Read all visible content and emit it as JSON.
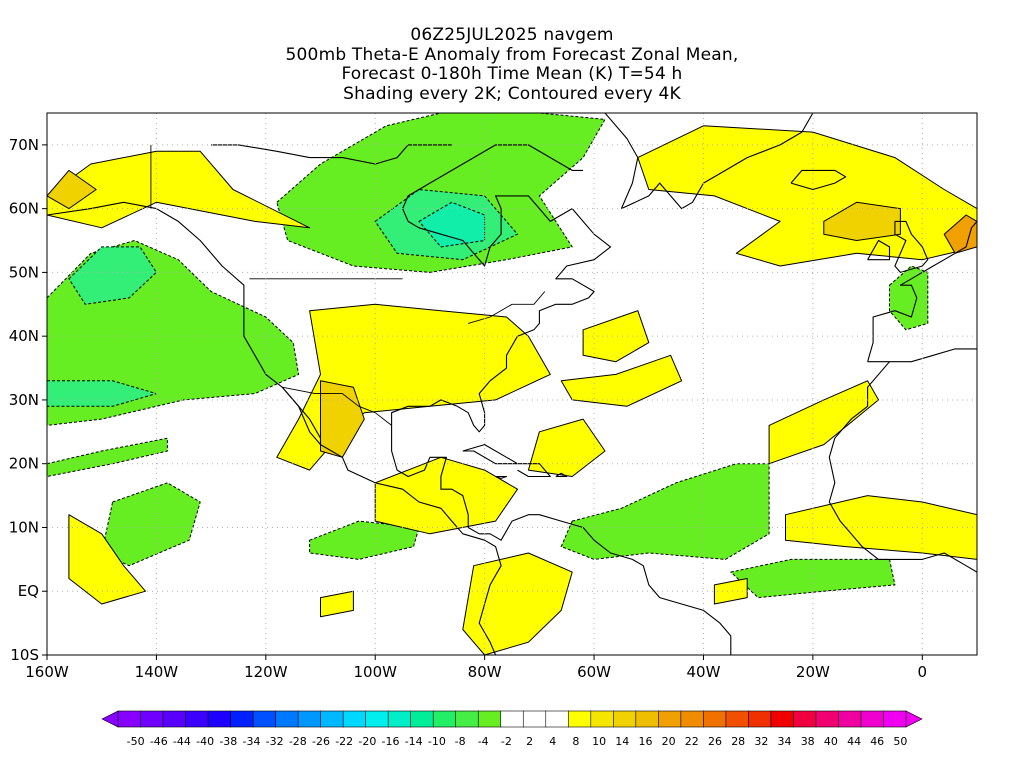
{
  "title": {
    "line1": "06Z25JUL2025 navgem",
    "line2": "500mb Theta-E Anomaly from Forecast Zonal Mean,",
    "line3": "Forecast 0-180h Time Mean (K) T=54 h",
    "line4": "Shading every 2K; Contoured every 4K"
  },
  "map": {
    "projection": "cylindrical",
    "lon_range": [
      -160,
      10
    ],
    "lat_range": [
      -10,
      75
    ],
    "lon_ticks": [
      {
        "value": -160,
        "label": "160W"
      },
      {
        "value": -140,
        "label": "140W"
      },
      {
        "value": -120,
        "label": "120W"
      },
      {
        "value": -100,
        "label": "100W"
      },
      {
        "value": -80,
        "label": "80W"
      },
      {
        "value": -60,
        "label": "60W"
      },
      {
        "value": -40,
        "label": "40W"
      },
      {
        "value": -20,
        "label": "20W"
      },
      {
        "value": 0,
        "label": "0"
      }
    ],
    "lat_ticks": [
      {
        "value": 70,
        "label": "70N"
      },
      {
        "value": 60,
        "label": "60N"
      },
      {
        "value": 50,
        "label": "50N"
      },
      {
        "value": 40,
        "label": "40N"
      },
      {
        "value": 30,
        "label": "30N"
      },
      {
        "value": 20,
        "label": "20N"
      },
      {
        "value": 10,
        "label": "10N"
      },
      {
        "value": 0,
        "label": "EQ"
      },
      {
        "value": -10,
        "label": "10S"
      }
    ],
    "grid": "dotted",
    "colors": {
      "land_outline": "#000000",
      "grid": "#b0b0b0",
      "pos_weak": "#ffff00",
      "pos_mid": "#f0d200",
      "pos_strong": "#f0a000",
      "neg_weak": "#66ee22",
      "neg_mid": "#33ee77",
      "neg_strong": "#11eeaa"
    },
    "anomaly_regions": [
      {
        "sign": "neg",
        "level": 1,
        "points": [
          [
            -160,
            46
          ],
          [
            -152,
            53
          ],
          [
            -144,
            55
          ],
          [
            -136,
            52
          ],
          [
            -130,
            47
          ],
          [
            -120,
            43
          ],
          [
            -115,
            39
          ],
          [
            -114,
            34
          ],
          [
            -122,
            31
          ],
          [
            -135,
            30
          ],
          [
            -150,
            27
          ],
          [
            -160,
            26
          ]
        ]
      },
      {
        "sign": "neg",
        "level": 2,
        "points": [
          [
            -156,
            49
          ],
          [
            -150,
            54
          ],
          [
            -143,
            54
          ],
          [
            -140,
            50
          ],
          [
            -145,
            46
          ],
          [
            -153,
            45
          ]
        ]
      },
      {
        "sign": "neg",
        "level": 2,
        "points": [
          [
            -160,
            33
          ],
          [
            -148,
            33
          ],
          [
            -140,
            31
          ],
          [
            -148,
            29
          ],
          [
            -160,
            29
          ]
        ]
      },
      {
        "sign": "neg",
        "level": 1,
        "points": [
          [
            -118,
            61
          ],
          [
            -110,
            67
          ],
          [
            -98,
            73
          ],
          [
            -88,
            75
          ],
          [
            -70,
            75
          ],
          [
            -58,
            74
          ],
          [
            -62,
            68
          ],
          [
            -70,
            62
          ],
          [
            -64,
            54
          ],
          [
            -76,
            52
          ],
          [
            -90,
            50
          ],
          [
            -104,
            51
          ],
          [
            -116,
            55
          ]
        ]
      },
      {
        "sign": "neg",
        "level": 2,
        "points": [
          [
            -100,
            58
          ],
          [
            -92,
            63
          ],
          [
            -80,
            62
          ],
          [
            -74,
            56
          ],
          [
            -84,
            52
          ],
          [
            -96,
            53
          ]
        ]
      },
      {
        "sign": "neg",
        "level": 3,
        "points": [
          [
            -92,
            58
          ],
          [
            -86,
            61
          ],
          [
            -80,
            59
          ],
          [
            -80,
            55
          ],
          [
            -88,
            54
          ]
        ]
      },
      {
        "sign": "neg",
        "level": 1,
        "points": [
          [
            -64,
            11
          ],
          [
            -55,
            13
          ],
          [
            -45,
            17
          ],
          [
            -34,
            20
          ],
          [
            -28,
            20
          ],
          [
            -28,
            9
          ],
          [
            -36,
            5
          ],
          [
            -50,
            6
          ],
          [
            -60,
            5
          ],
          [
            -66,
            7
          ]
        ]
      },
      {
        "sign": "neg",
        "level": 1,
        "points": [
          [
            -148,
            14
          ],
          [
            -138,
            17
          ],
          [
            -132,
            14
          ],
          [
            -134,
            8
          ],
          [
            -145,
            4
          ],
          [
            -150,
            6
          ]
        ]
      },
      {
        "sign": "neg",
        "level": 1,
        "points": [
          [
            -112,
            8
          ],
          [
            -103,
            11
          ],
          [
            -92,
            10
          ],
          [
            -93,
            7
          ],
          [
            -103,
            5
          ],
          [
            -112,
            6
          ]
        ]
      },
      {
        "sign": "neg",
        "level": 1,
        "points": [
          [
            -35,
            3
          ],
          [
            -24,
            5
          ],
          [
            -6,
            5
          ],
          [
            -5,
            1
          ],
          [
            -18,
            0
          ],
          [
            -30,
            -1
          ]
        ]
      },
      {
        "sign": "neg",
        "level": 1,
        "points": [
          [
            -160,
            20
          ],
          [
            -150,
            22
          ],
          [
            -138,
            24
          ],
          [
            -138,
            22
          ],
          [
            -148,
            20
          ],
          [
            -160,
            18
          ]
        ]
      },
      {
        "sign": "neg",
        "level": 1,
        "points": [
          [
            -6,
            48
          ],
          [
            -2,
            51
          ],
          [
            1,
            50
          ],
          [
            1,
            42
          ],
          [
            -3,
            41
          ],
          [
            -6,
            44
          ]
        ]
      },
      {
        "sign": "pos",
        "level": 1,
        "points": [
          [
            -160,
            62
          ],
          [
            -152,
            67
          ],
          [
            -140,
            69
          ],
          [
            -132,
            69
          ],
          [
            -126,
            63
          ],
          [
            -112,
            57
          ],
          [
            -122,
            58
          ],
          [
            -140,
            61
          ],
          [
            -150,
            57
          ],
          [
            -160,
            59
          ]
        ]
      },
      {
        "sign": "pos",
        "level": 2,
        "points": [
          [
            -160,
            62
          ],
          [
            -156,
            66
          ],
          [
            -151,
            63
          ],
          [
            -156,
            60
          ]
        ]
      },
      {
        "sign": "pos",
        "level": 1,
        "points": [
          [
            -52,
            68
          ],
          [
            -40,
            73
          ],
          [
            -20,
            72
          ],
          [
            -5,
            68
          ],
          [
            4,
            63
          ],
          [
            10,
            60
          ],
          [
            10,
            54
          ],
          [
            0,
            52
          ],
          [
            -12,
            53
          ],
          [
            -26,
            51
          ],
          [
            -34,
            53
          ],
          [
            -26,
            58
          ],
          [
            -38,
            62
          ],
          [
            -50,
            63
          ]
        ]
      },
      {
        "sign": "pos",
        "level": 2,
        "points": [
          [
            -18,
            58
          ],
          [
            -12,
            61
          ],
          [
            -4,
            60
          ],
          [
            -4,
            56
          ],
          [
            -12,
            55
          ],
          [
            -18,
            56
          ]
        ]
      },
      {
        "sign": "pos",
        "level": 3,
        "points": [
          [
            4,
            56
          ],
          [
            8,
            59
          ],
          [
            10,
            58
          ],
          [
            10,
            54
          ],
          [
            6,
            53
          ]
        ]
      },
      {
        "sign": "pos",
        "level": 1,
        "points": [
          [
            -112,
            44
          ],
          [
            -100,
            45
          ],
          [
            -88,
            44
          ],
          [
            -76,
            43
          ],
          [
            -72,
            40
          ],
          [
            -68,
            34
          ],
          [
            -78,
            30
          ],
          [
            -90,
            29
          ],
          [
            -102,
            28
          ],
          [
            -108,
            23
          ],
          [
            -112,
            19
          ],
          [
            -118,
            21
          ],
          [
            -114,
            27
          ],
          [
            -110,
            34
          ]
        ]
      },
      {
        "sign": "pos",
        "level": 2,
        "points": [
          [
            -110,
            33
          ],
          [
            -104,
            32
          ],
          [
            -102,
            27
          ],
          [
            -106,
            21
          ],
          [
            -110,
            22
          ],
          [
            -110,
            28
          ]
        ]
      },
      {
        "sign": "pos",
        "level": 1,
        "points": [
          [
            -62,
            41
          ],
          [
            -52,
            44
          ],
          [
            -50,
            39
          ],
          [
            -56,
            36
          ],
          [
            -62,
            37
          ]
        ]
      },
      {
        "sign": "pos",
        "level": 1,
        "points": [
          [
            -66,
            33
          ],
          [
            -56,
            34
          ],
          [
            -46,
            37
          ],
          [
            -44,
            33
          ],
          [
            -54,
            29
          ],
          [
            -64,
            30
          ]
        ]
      },
      {
        "sign": "pos",
        "level": 1,
        "points": [
          [
            -100,
            17
          ],
          [
            -88,
            21
          ],
          [
            -80,
            19
          ],
          [
            -74,
            16
          ],
          [
            -78,
            11
          ],
          [
            -90,
            9
          ],
          [
            -100,
            11
          ]
        ]
      },
      {
        "sign": "pos",
        "level": 1,
        "points": [
          [
            -70,
            25
          ],
          [
            -62,
            27
          ],
          [
            -58,
            22
          ],
          [
            -64,
            18
          ],
          [
            -72,
            19
          ]
        ]
      },
      {
        "sign": "pos",
        "level": 1,
        "points": [
          [
            -28,
            26
          ],
          [
            -18,
            30
          ],
          [
            -10,
            33
          ],
          [
            -8,
            30
          ],
          [
            -18,
            23
          ],
          [
            -28,
            20
          ]
        ]
      },
      {
        "sign": "pos",
        "level": 1,
        "points": [
          [
            -25,
            12
          ],
          [
            -10,
            15
          ],
          [
            0,
            14
          ],
          [
            10,
            12
          ],
          [
            10,
            5
          ],
          [
            0,
            6
          ],
          [
            -14,
            7
          ],
          [
            -25,
            8
          ]
        ]
      },
      {
        "sign": "pos",
        "level": 1,
        "points": [
          [
            -156,
            12
          ],
          [
            -150,
            9
          ],
          [
            -146,
            4
          ],
          [
            -142,
            0
          ],
          [
            -150,
            -2
          ],
          [
            -156,
            2
          ]
        ]
      },
      {
        "sign": "pos",
        "level": 1,
        "points": [
          [
            -82,
            4
          ],
          [
            -72,
            6
          ],
          [
            -64,
            3
          ],
          [
            -66,
            -3
          ],
          [
            -72,
            -8
          ],
          [
            -80,
            -10
          ],
          [
            -84,
            -6
          ]
        ]
      },
      {
        "sign": "pos",
        "level": 1,
        "points": [
          [
            -110,
            -1
          ],
          [
            -104,
            0
          ],
          [
            -104,
            -3
          ],
          [
            -110,
            -4
          ]
        ]
      },
      {
        "sign": "pos",
        "level": 1,
        "points": [
          [
            -38,
            1
          ],
          [
            -32,
            2
          ],
          [
            -32,
            -1
          ],
          [
            -38,
            -2
          ]
        ]
      }
    ]
  },
  "colorbar": {
    "labels": [
      "-50",
      "-46",
      "-44",
      "-40",
      "-38",
      "-34",
      "-32",
      "-28",
      "-26",
      "-22",
      "-20",
      "-16",
      "-14",
      "-10",
      "-8",
      "-4",
      "-2",
      "2",
      "4",
      "8",
      "10",
      "14",
      "16",
      "20",
      "22",
      "26",
      "28",
      "32",
      "34",
      "38",
      "40",
      "44",
      "46",
      "50"
    ],
    "colors": [
      "#8800ff",
      "#7000ff",
      "#5a00ff",
      "#3c00ff",
      "#1e00ff",
      "#0020ff",
      "#0050ff",
      "#0078ff",
      "#0098ff",
      "#00b8ff",
      "#00d8ff",
      "#00eeee",
      "#00eec8",
      "#00ee99",
      "#22ee66",
      "#44ee44",
      "#66ee22",
      "#ffffff",
      "#ffffff",
      "#ffffff",
      "#ffff00",
      "#f5e600",
      "#f0d200",
      "#f0be00",
      "#f0a000",
      "#f08c00",
      "#f07000",
      "#f05000",
      "#f03000",
      "#f00000",
      "#f00040",
      "#f00070",
      "#f000a0",
      "#f000d0",
      "#f000f0"
    ]
  }
}
